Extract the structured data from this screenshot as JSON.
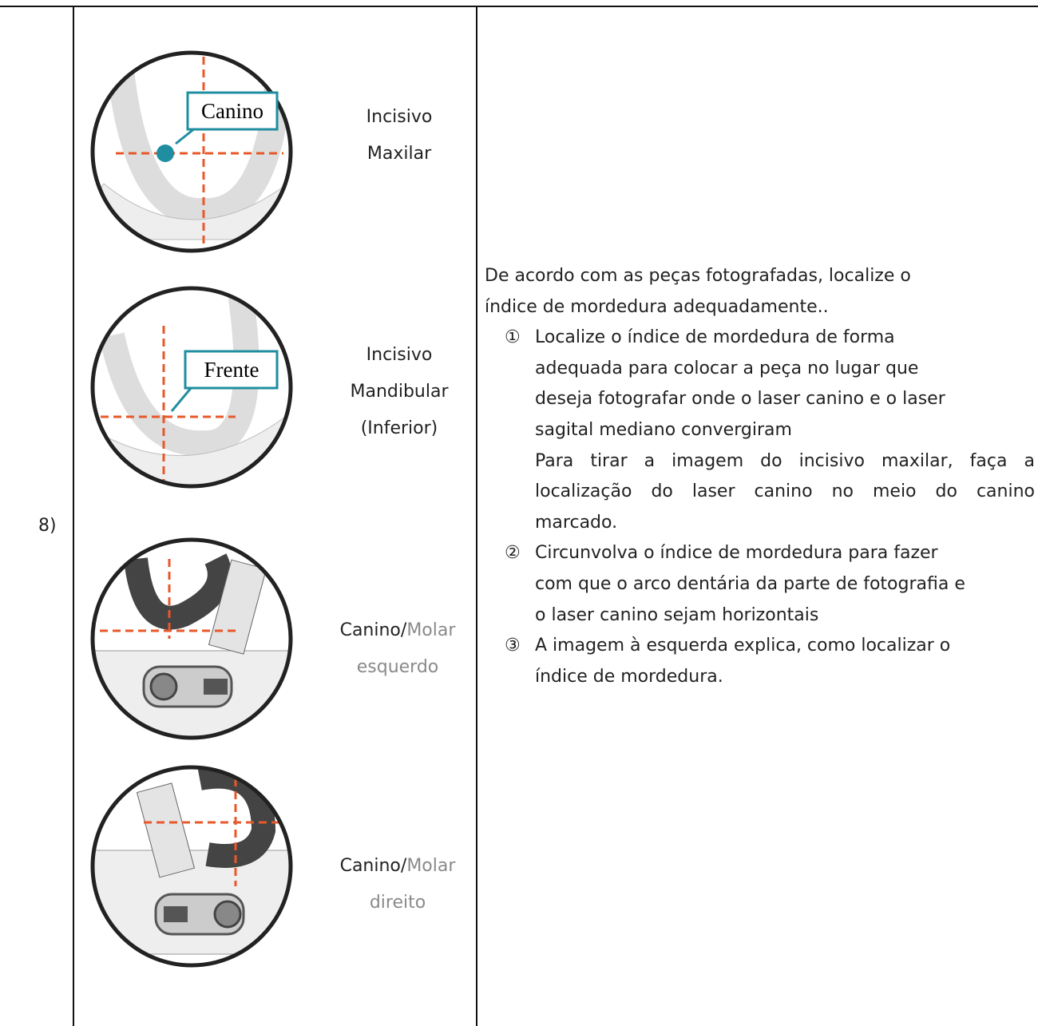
{
  "step": "8)",
  "images": [
    {
      "callout": "Canino",
      "caption": [
        [
          "Incisivo"
        ],
        [
          "Maxilar"
        ]
      ]
    },
    {
      "callout": "Frente",
      "caption": [
        [
          "Incisivo"
        ],
        [
          "Mandibular"
        ],
        [
          "(Inferior)"
        ]
      ]
    },
    {
      "caption": [
        [
          "Canino/",
          "Molar"
        ],
        [
          "esquerdo"
        ]
      ]
    },
    {
      "caption": [
        [
          "Canino/",
          "Molar"
        ],
        [
          "direito"
        ]
      ]
    }
  ],
  "instructions": {
    "intro": [
      "De acordo com as peças fotografadas, localize o",
      "índice de mordedura adequadamente.."
    ],
    "items": [
      {
        "marker": "①",
        "lines": [
          "Localize o índice de mordedura de forma",
          "adequada para colocar a peça no lugar que",
          "deseja fotografar onde o laser canino e o laser",
          "sagital mediano convergiram"
        ],
        "note": [
          "Para tirar a imagem do incisivo maxilar, faça a",
          "localização do laser canino no meio do canino",
          "marcado."
        ]
      },
      {
        "marker": "②",
        "lines": [
          "Circunvolva o índice de mordedura para fazer",
          "com que o arco dentária da parte de fotografia e",
          "o laser canino sejam horizontais"
        ]
      },
      {
        "marker": "③",
        "lines": [
          "A imagem à esquerda explica, como localizar o",
          "índice de mordedura."
        ]
      }
    ]
  }
}
